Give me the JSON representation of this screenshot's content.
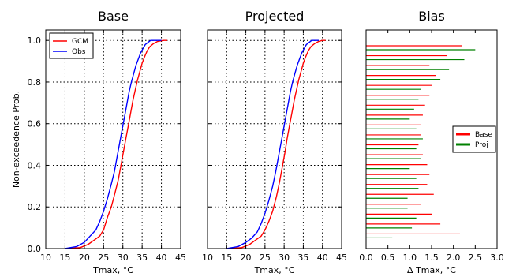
{
  "chart_data": [
    {
      "type": "line",
      "title": "Base",
      "xlabel": "Tmax, °C",
      "ylabel": "Non-exceedence Prob.",
      "xlim": [
        10,
        45
      ],
      "ylim": [
        0,
        1.05
      ],
      "x_ticks": [
        "10",
        "15",
        "20",
        "25",
        "30",
        "35",
        "40",
        "45"
      ],
      "y_ticks": [
        "0.0",
        "0.2",
        "0.4",
        "0.6",
        "0.8",
        "1.0"
      ],
      "grid": true,
      "legend": "top-left",
      "series": [
        {
          "name": "GCM",
          "color": "#ff0000",
          "x": [
            16.0,
            19.0,
            21.0,
            22.5,
            24.0,
            25.0,
            26.0,
            27.0,
            28.0,
            28.8,
            29.5,
            30.2,
            30.8,
            31.4,
            32.0,
            32.6,
            33.2,
            33.8,
            34.4,
            35.0,
            35.6,
            36.3,
            37.0,
            38.0,
            39.0,
            40.5,
            41.5
          ],
          "y": [
            0.0,
            0.005,
            0.02,
            0.04,
            0.06,
            0.09,
            0.15,
            0.2,
            0.27,
            0.33,
            0.4,
            0.47,
            0.53,
            0.59,
            0.65,
            0.71,
            0.76,
            0.81,
            0.85,
            0.89,
            0.92,
            0.95,
            0.97,
            0.985,
            0.995,
            1.0,
            1.0
          ]
        },
        {
          "name": "Obs",
          "color": "#0000ff",
          "x": [
            15.0,
            18.0,
            20.0,
            21.5,
            23.0,
            24.0,
            25.0,
            26.0,
            27.0,
            27.8,
            28.5,
            29.2,
            29.8,
            30.4,
            31.0,
            31.6,
            32.2,
            32.8,
            33.4,
            34.0,
            34.6,
            35.2,
            35.8,
            36.5,
            37.2,
            38.0,
            40.0
          ],
          "y": [
            0.0,
            0.01,
            0.03,
            0.06,
            0.09,
            0.13,
            0.18,
            0.24,
            0.31,
            0.37,
            0.44,
            0.51,
            0.57,
            0.63,
            0.69,
            0.75,
            0.8,
            0.84,
            0.88,
            0.91,
            0.94,
            0.96,
            0.98,
            0.99,
            1.0,
            1.0,
            1.0
          ]
        }
      ]
    },
    {
      "type": "line",
      "title": "Projected",
      "xlabel": "Tmax, °C",
      "xlim": [
        10,
        45
      ],
      "ylim": [
        0,
        1.05
      ],
      "x_ticks": [
        "10",
        "15",
        "20",
        "25",
        "30",
        "35",
        "40",
        "45"
      ],
      "grid": true,
      "series": [
        {
          "name": "GCM",
          "color": "#ff0000",
          "x": [
            16.0,
            19.0,
            21.0,
            22.5,
            24.0,
            25.0,
            26.0,
            27.0,
            28.0,
            28.8,
            29.5,
            30.2,
            30.8,
            31.4,
            32.0,
            32.6,
            33.2,
            33.8,
            34.4,
            35.0,
            35.6,
            36.3,
            37.0,
            38.0,
            39.0,
            40.0,
            40.8
          ],
          "y": [
            0.0,
            0.005,
            0.02,
            0.04,
            0.06,
            0.09,
            0.13,
            0.18,
            0.25,
            0.32,
            0.39,
            0.46,
            0.53,
            0.59,
            0.65,
            0.71,
            0.76,
            0.81,
            0.85,
            0.89,
            0.92,
            0.95,
            0.97,
            0.985,
            0.995,
            1.0,
            1.0
          ]
        },
        {
          "name": "Obs",
          "color": "#0000ff",
          "x": [
            15.0,
            18.0,
            20.0,
            21.5,
            23.0,
            24.0,
            25.0,
            26.0,
            27.0,
            27.8,
            28.5,
            29.2,
            29.8,
            30.4,
            31.0,
            31.6,
            32.2,
            32.8,
            33.4,
            34.0,
            34.6,
            35.2,
            35.8,
            36.5,
            37.2,
            38.0,
            39.0
          ],
          "y": [
            0.0,
            0.01,
            0.03,
            0.05,
            0.08,
            0.12,
            0.17,
            0.23,
            0.3,
            0.37,
            0.44,
            0.51,
            0.57,
            0.63,
            0.69,
            0.75,
            0.8,
            0.84,
            0.88,
            0.91,
            0.94,
            0.96,
            0.98,
            0.99,
            1.0,
            1.0,
            1.0
          ]
        }
      ]
    },
    {
      "type": "bar",
      "orientation": "horizontal",
      "title": "Bias",
      "xlabel": "Δ Tmax, °C",
      "xlim": [
        0,
        3.0
      ],
      "x_ticks": [
        "0.0",
        "0.5",
        "1.0",
        "1.5",
        "2.0",
        "2.5",
        "3.0"
      ],
      "grid": false,
      "legend": "center-right",
      "series": [
        {
          "name": "Base",
          "color": "#ff0000",
          "values": [
            2.2,
            1.85,
            1.45,
            1.6,
            1.5,
            1.45,
            1.35,
            1.3,
            1.25,
            1.25,
            1.2,
            1.3,
            1.4,
            1.45,
            1.4,
            1.55,
            1.25,
            1.5,
            1.7,
            2.15
          ]
        },
        {
          "name": "Proj",
          "color": "#008000",
          "values": [
            2.5,
            2.25,
            1.9,
            1.7,
            1.25,
            1.2,
            1.1,
            1.0,
            1.15,
            1.3,
            1.15,
            1.25,
            1.0,
            1.15,
            1.2,
            0.95,
            0.95,
            1.15,
            1.05,
            0.6
          ]
        }
      ]
    }
  ]
}
